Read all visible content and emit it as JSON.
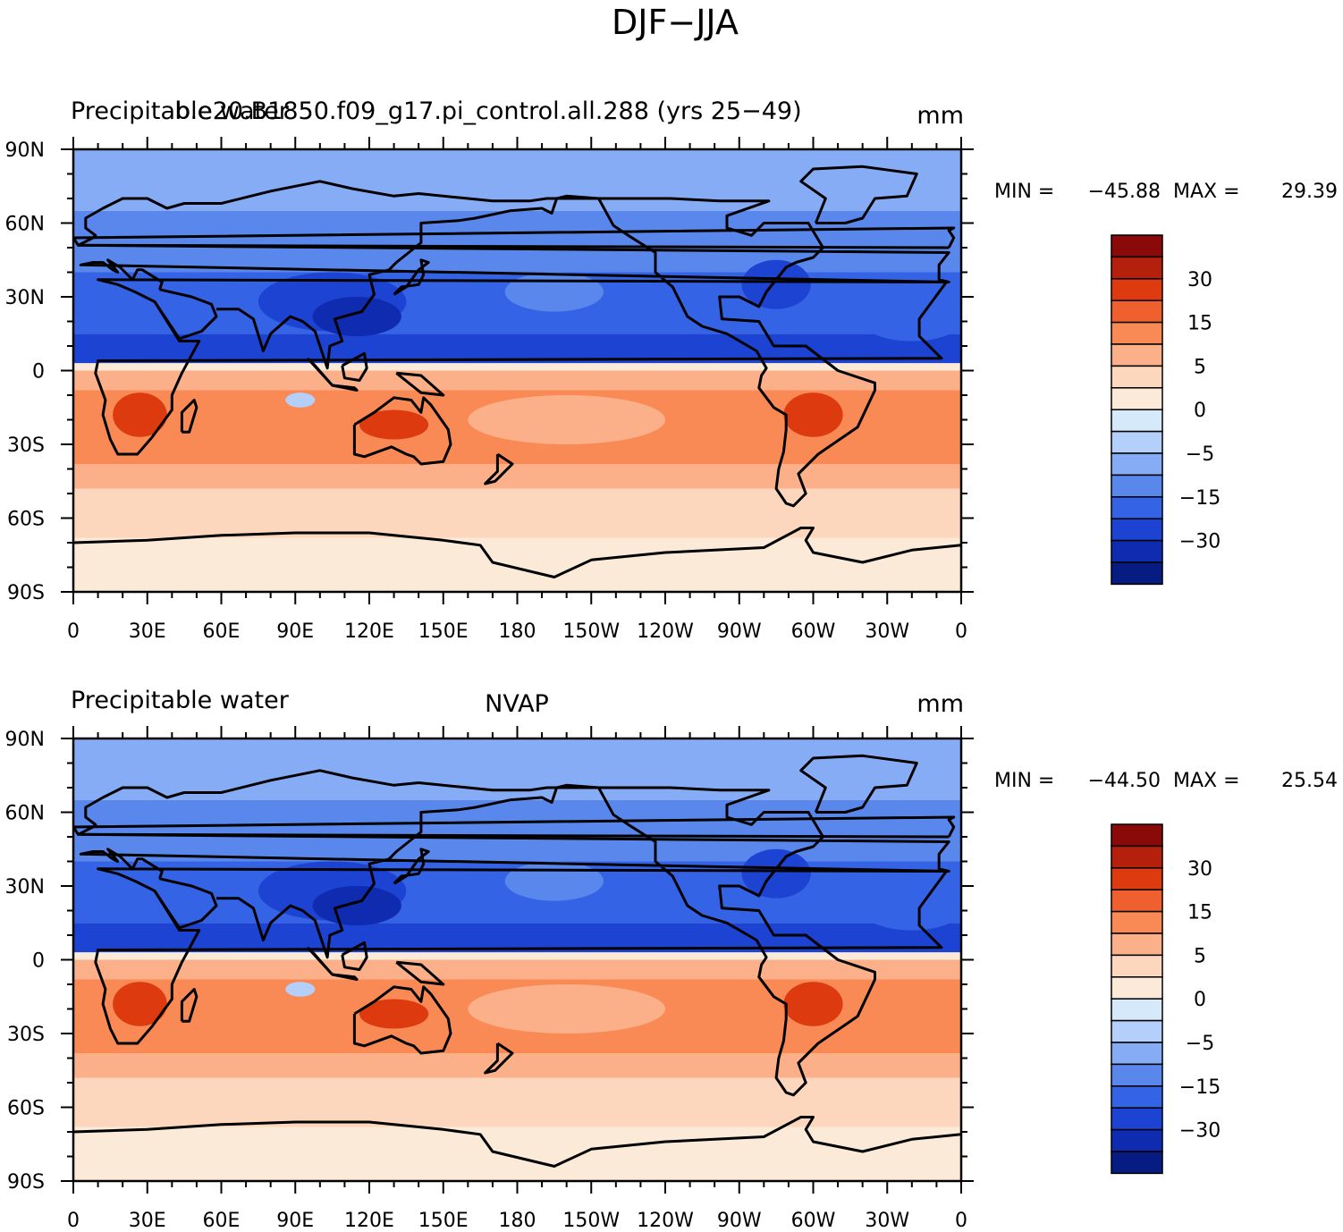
{
  "figure_title": "DJF−JJA",
  "chart_data": [
    {
      "type": "heatmap",
      "variable": "Precipitable water",
      "subtitle": "b.e20.B1850.f09_g17.pi_control.all.288 (yrs 25−49)",
      "units": "mm",
      "stats": {
        "min_label": "MIN =",
        "min": "−45.88",
        "max_label": "MAX =",
        "max": "29.39"
      },
      "lat_ticks": [
        "90N",
        "60N",
        "30N",
        "0",
        "30S",
        "60S",
        "90S"
      ],
      "lon_ticks": [
        "0",
        "30E",
        "60E",
        "90E",
        "120E",
        "150E",
        "180",
        "150W",
        "120W",
        "90W",
        "60W",
        "30W",
        "0"
      ],
      "colorbar_labels": [
        "30",
        "15",
        "5",
        "0",
        "−5",
        "−15",
        "−30"
      ],
      "xlim": [
        0,
        360
      ],
      "ylim": [
        -90,
        90
      ]
    },
    {
      "type": "heatmap",
      "variable": "Precipitable water",
      "subtitle": "NVAP",
      "units": "mm",
      "stats": {
        "min_label": "MIN =",
        "min": "−44.50",
        "max_label": "MAX =",
        "max": "25.54"
      },
      "lat_ticks": [
        "90N",
        "60N",
        "30N",
        "0",
        "30S",
        "60S",
        "90S"
      ],
      "lon_ticks": [
        "0",
        "30E",
        "60E",
        "90E",
        "120E",
        "150E",
        "180",
        "150W",
        "120W",
        "90W",
        "60W",
        "30W",
        "0"
      ],
      "colorbar_labels": [
        "30",
        "15",
        "5",
        "0",
        "−5",
        "−15",
        "−30"
      ],
      "xlim": [
        0,
        360
      ],
      "ylim": [
        -90,
        90
      ]
    }
  ],
  "colorbar_colors": [
    "#8a0a0a",
    "#b5200c",
    "#dd3a10",
    "#f0602e",
    "#f98a55",
    "#fbb08a",
    "#fdd7bd",
    "#fcead8",
    "#d5e9fb",
    "#b3cffa",
    "#86acf5",
    "#5a87ec",
    "#3563e6",
    "#1c43d2",
    "#0f2cb0",
    "#071c82"
  ],
  "colors": {
    "ocean_north": "#86acf5",
    "north_mid": "#5a87ec",
    "north_strong": "#3563e6",
    "north_band": "#1c43d2",
    "south_pale": "#fdd7bd",
    "south_mid": "#fbb08a",
    "south_strong": "#f98a55",
    "hot": "#dd3a10",
    "antarctic": "#fcead8",
    "coast": "#000000"
  }
}
